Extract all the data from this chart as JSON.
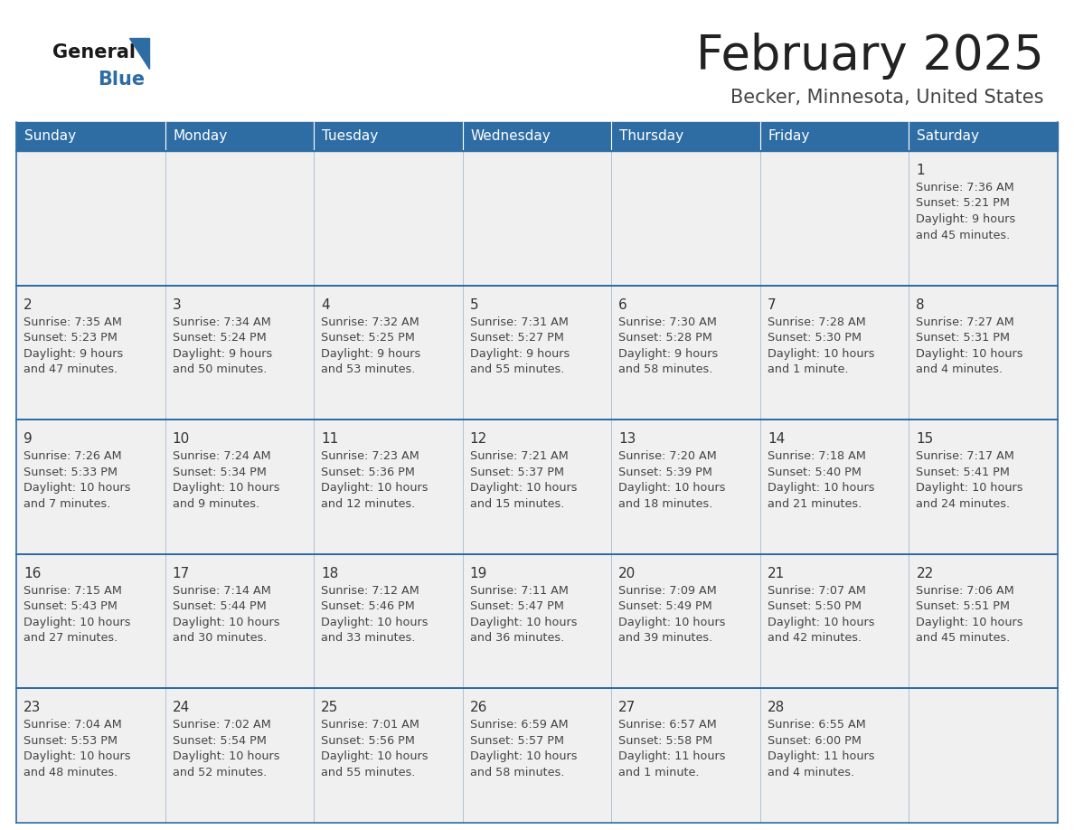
{
  "title": "February 2025",
  "subtitle": "Becker, Minnesota, United States",
  "days_of_week": [
    "Sunday",
    "Monday",
    "Tuesday",
    "Wednesday",
    "Thursday",
    "Friday",
    "Saturday"
  ],
  "header_bg": "#2E6DA4",
  "header_text": "#FFFFFF",
  "cell_bg": "#F0F0F0",
  "cell_border": "#2E6DA4",
  "day_number_color": "#333333",
  "cell_text_color": "#444444",
  "title_color": "#222222",
  "subtitle_color": "#444444",
  "logo_general_color": "#1a1a1a",
  "logo_blue_color": "#2E6DA4",
  "weeks": [
    [
      null,
      null,
      null,
      null,
      null,
      null,
      1
    ],
    [
      2,
      3,
      4,
      5,
      6,
      7,
      8
    ],
    [
      9,
      10,
      11,
      12,
      13,
      14,
      15
    ],
    [
      16,
      17,
      18,
      19,
      20,
      21,
      22
    ],
    [
      23,
      24,
      25,
      26,
      27,
      28,
      null
    ]
  ],
  "day_data": {
    "1": {
      "sunrise": "7:36 AM",
      "sunset": "5:21 PM",
      "daylight_l1": "Daylight: 9 hours",
      "daylight_l2": "and 45 minutes."
    },
    "2": {
      "sunrise": "7:35 AM",
      "sunset": "5:23 PM",
      "daylight_l1": "Daylight: 9 hours",
      "daylight_l2": "and 47 minutes."
    },
    "3": {
      "sunrise": "7:34 AM",
      "sunset": "5:24 PM",
      "daylight_l1": "Daylight: 9 hours",
      "daylight_l2": "and 50 minutes."
    },
    "4": {
      "sunrise": "7:32 AM",
      "sunset": "5:25 PM",
      "daylight_l1": "Daylight: 9 hours",
      "daylight_l2": "and 53 minutes."
    },
    "5": {
      "sunrise": "7:31 AM",
      "sunset": "5:27 PM",
      "daylight_l1": "Daylight: 9 hours",
      "daylight_l2": "and 55 minutes."
    },
    "6": {
      "sunrise": "7:30 AM",
      "sunset": "5:28 PM",
      "daylight_l1": "Daylight: 9 hours",
      "daylight_l2": "and 58 minutes."
    },
    "7": {
      "sunrise": "7:28 AM",
      "sunset": "5:30 PM",
      "daylight_l1": "Daylight: 10 hours",
      "daylight_l2": "and 1 minute."
    },
    "8": {
      "sunrise": "7:27 AM",
      "sunset": "5:31 PM",
      "daylight_l1": "Daylight: 10 hours",
      "daylight_l2": "and 4 minutes."
    },
    "9": {
      "sunrise": "7:26 AM",
      "sunset": "5:33 PM",
      "daylight_l1": "Daylight: 10 hours",
      "daylight_l2": "and 7 minutes."
    },
    "10": {
      "sunrise": "7:24 AM",
      "sunset": "5:34 PM",
      "daylight_l1": "Daylight: 10 hours",
      "daylight_l2": "and 9 minutes."
    },
    "11": {
      "sunrise": "7:23 AM",
      "sunset": "5:36 PM",
      "daylight_l1": "Daylight: 10 hours",
      "daylight_l2": "and 12 minutes."
    },
    "12": {
      "sunrise": "7:21 AM",
      "sunset": "5:37 PM",
      "daylight_l1": "Daylight: 10 hours",
      "daylight_l2": "and 15 minutes."
    },
    "13": {
      "sunrise": "7:20 AM",
      "sunset": "5:39 PM",
      "daylight_l1": "Daylight: 10 hours",
      "daylight_l2": "and 18 minutes."
    },
    "14": {
      "sunrise": "7:18 AM",
      "sunset": "5:40 PM",
      "daylight_l1": "Daylight: 10 hours",
      "daylight_l2": "and 21 minutes."
    },
    "15": {
      "sunrise": "7:17 AM",
      "sunset": "5:41 PM",
      "daylight_l1": "Daylight: 10 hours",
      "daylight_l2": "and 24 minutes."
    },
    "16": {
      "sunrise": "7:15 AM",
      "sunset": "5:43 PM",
      "daylight_l1": "Daylight: 10 hours",
      "daylight_l2": "and 27 minutes."
    },
    "17": {
      "sunrise": "7:14 AM",
      "sunset": "5:44 PM",
      "daylight_l1": "Daylight: 10 hours",
      "daylight_l2": "and 30 minutes."
    },
    "18": {
      "sunrise": "7:12 AM",
      "sunset": "5:46 PM",
      "daylight_l1": "Daylight: 10 hours",
      "daylight_l2": "and 33 minutes."
    },
    "19": {
      "sunrise": "7:11 AM",
      "sunset": "5:47 PM",
      "daylight_l1": "Daylight: 10 hours",
      "daylight_l2": "and 36 minutes."
    },
    "20": {
      "sunrise": "7:09 AM",
      "sunset": "5:49 PM",
      "daylight_l1": "Daylight: 10 hours",
      "daylight_l2": "and 39 minutes."
    },
    "21": {
      "sunrise": "7:07 AM",
      "sunset": "5:50 PM",
      "daylight_l1": "Daylight: 10 hours",
      "daylight_l2": "and 42 minutes."
    },
    "22": {
      "sunrise": "7:06 AM",
      "sunset": "5:51 PM",
      "daylight_l1": "Daylight: 10 hours",
      "daylight_l2": "and 45 minutes."
    },
    "23": {
      "sunrise": "7:04 AM",
      "sunset": "5:53 PM",
      "daylight_l1": "Daylight: 10 hours",
      "daylight_l2": "and 48 minutes."
    },
    "24": {
      "sunrise": "7:02 AM",
      "sunset": "5:54 PM",
      "daylight_l1": "Daylight: 10 hours",
      "daylight_l2": "and 52 minutes."
    },
    "25": {
      "sunrise": "7:01 AM",
      "sunset": "5:56 PM",
      "daylight_l1": "Daylight: 10 hours",
      "daylight_l2": "and 55 minutes."
    },
    "26": {
      "sunrise": "6:59 AM",
      "sunset": "5:57 PM",
      "daylight_l1": "Daylight: 10 hours",
      "daylight_l2": "and 58 minutes."
    },
    "27": {
      "sunrise": "6:57 AM",
      "sunset": "5:58 PM",
      "daylight_l1": "Daylight: 11 hours",
      "daylight_l2": "and 1 minute."
    },
    "28": {
      "sunrise": "6:55 AM",
      "sunset": "6:00 PM",
      "daylight_l1": "Daylight: 11 hours",
      "daylight_l2": "and 4 minutes."
    }
  }
}
